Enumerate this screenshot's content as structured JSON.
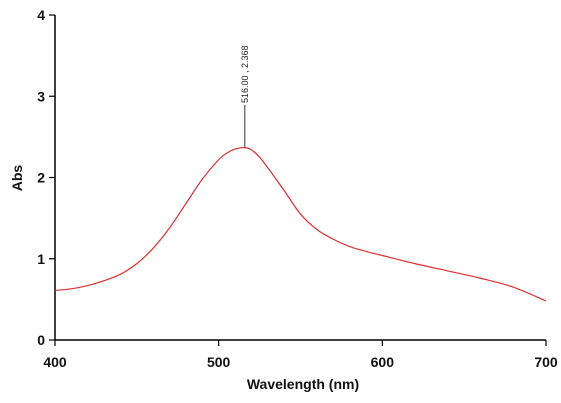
{
  "chart_data": {
    "type": "line",
    "xlabel": "Wavelength (nm)",
    "ylabel": "Abs",
    "xlim": [
      400,
      700
    ],
    "ylim": [
      0,
      4
    ],
    "x_ticks": [
      "400",
      "500",
      "600",
      "700"
    ],
    "y_ticks": [
      "0",
      "1",
      "2",
      "3",
      "4"
    ],
    "grid": false,
    "colors": {
      "series": "#e03131",
      "axis": "#000000"
    },
    "series": [
      {
        "x": [
          400,
          410,
          420,
          430,
          440,
          450,
          460,
          470,
          480,
          490,
          500,
          505,
          510,
          516,
          520,
          525,
          530,
          540,
          550,
          560,
          570,
          580,
          590,
          600,
          620,
          640,
          660,
          680,
          700
        ],
        "y": [
          0.61,
          0.63,
          0.67,
          0.73,
          0.81,
          0.94,
          1.13,
          1.38,
          1.68,
          1.98,
          2.22,
          2.3,
          2.35,
          2.368,
          2.34,
          2.25,
          2.12,
          1.84,
          1.55,
          1.36,
          1.24,
          1.15,
          1.09,
          1.04,
          0.94,
          0.85,
          0.76,
          0.65,
          0.48
        ]
      }
    ],
    "annotations": [
      {
        "x": 516,
        "y": 2.368,
        "text": "516.00 , 2.368"
      }
    ]
  }
}
